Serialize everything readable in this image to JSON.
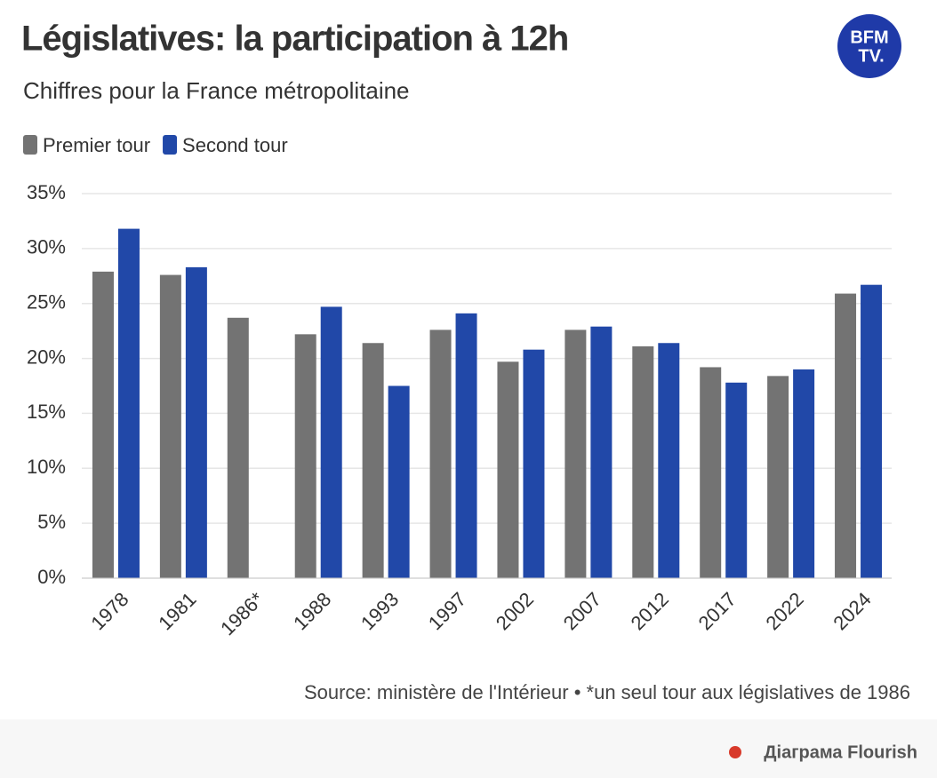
{
  "chart_data": {
    "type": "bar",
    "title": "Législatives: la participation à 12h",
    "subtitle": "Chiffres pour la France métropolitaine",
    "logo": [
      "BFM",
      "TV."
    ],
    "categories": [
      "1978",
      "1981",
      "1986*",
      "1988",
      "1993",
      "1997",
      "2002",
      "2007",
      "2012",
      "2017",
      "2022",
      "2024"
    ],
    "series": [
      {
        "name": "Premier tour",
        "color": "#737373",
        "values": [
          27.9,
          27.6,
          23.7,
          22.2,
          21.4,
          22.6,
          19.7,
          22.6,
          21.1,
          19.2,
          18.4,
          25.9
        ]
      },
      {
        "name": "Second tour",
        "color": "#2148a8",
        "values": [
          31.8,
          28.3,
          null,
          24.7,
          17.5,
          24.1,
          20.8,
          22.9,
          21.4,
          17.8,
          19.0,
          26.7
        ]
      }
    ],
    "ylim": [
      0,
      35
    ],
    "yticks": [
      {
        "value": 0,
        "label": "0%"
      },
      {
        "value": 5,
        "label": "5%"
      },
      {
        "value": 10,
        "label": "10%"
      },
      {
        "value": 15,
        "label": "15%"
      },
      {
        "value": 20,
        "label": "20%"
      },
      {
        "value": 25,
        "label": "25%"
      },
      {
        "value": 30,
        "label": "30%"
      },
      {
        "value": 35,
        "label": "35%"
      }
    ],
    "grid": true,
    "legend": "top-left",
    "source": "Source: ministère de l'Intérieur • *un seul tour aux législatives de 1986",
    "credit": "Діаграма Flourish"
  }
}
